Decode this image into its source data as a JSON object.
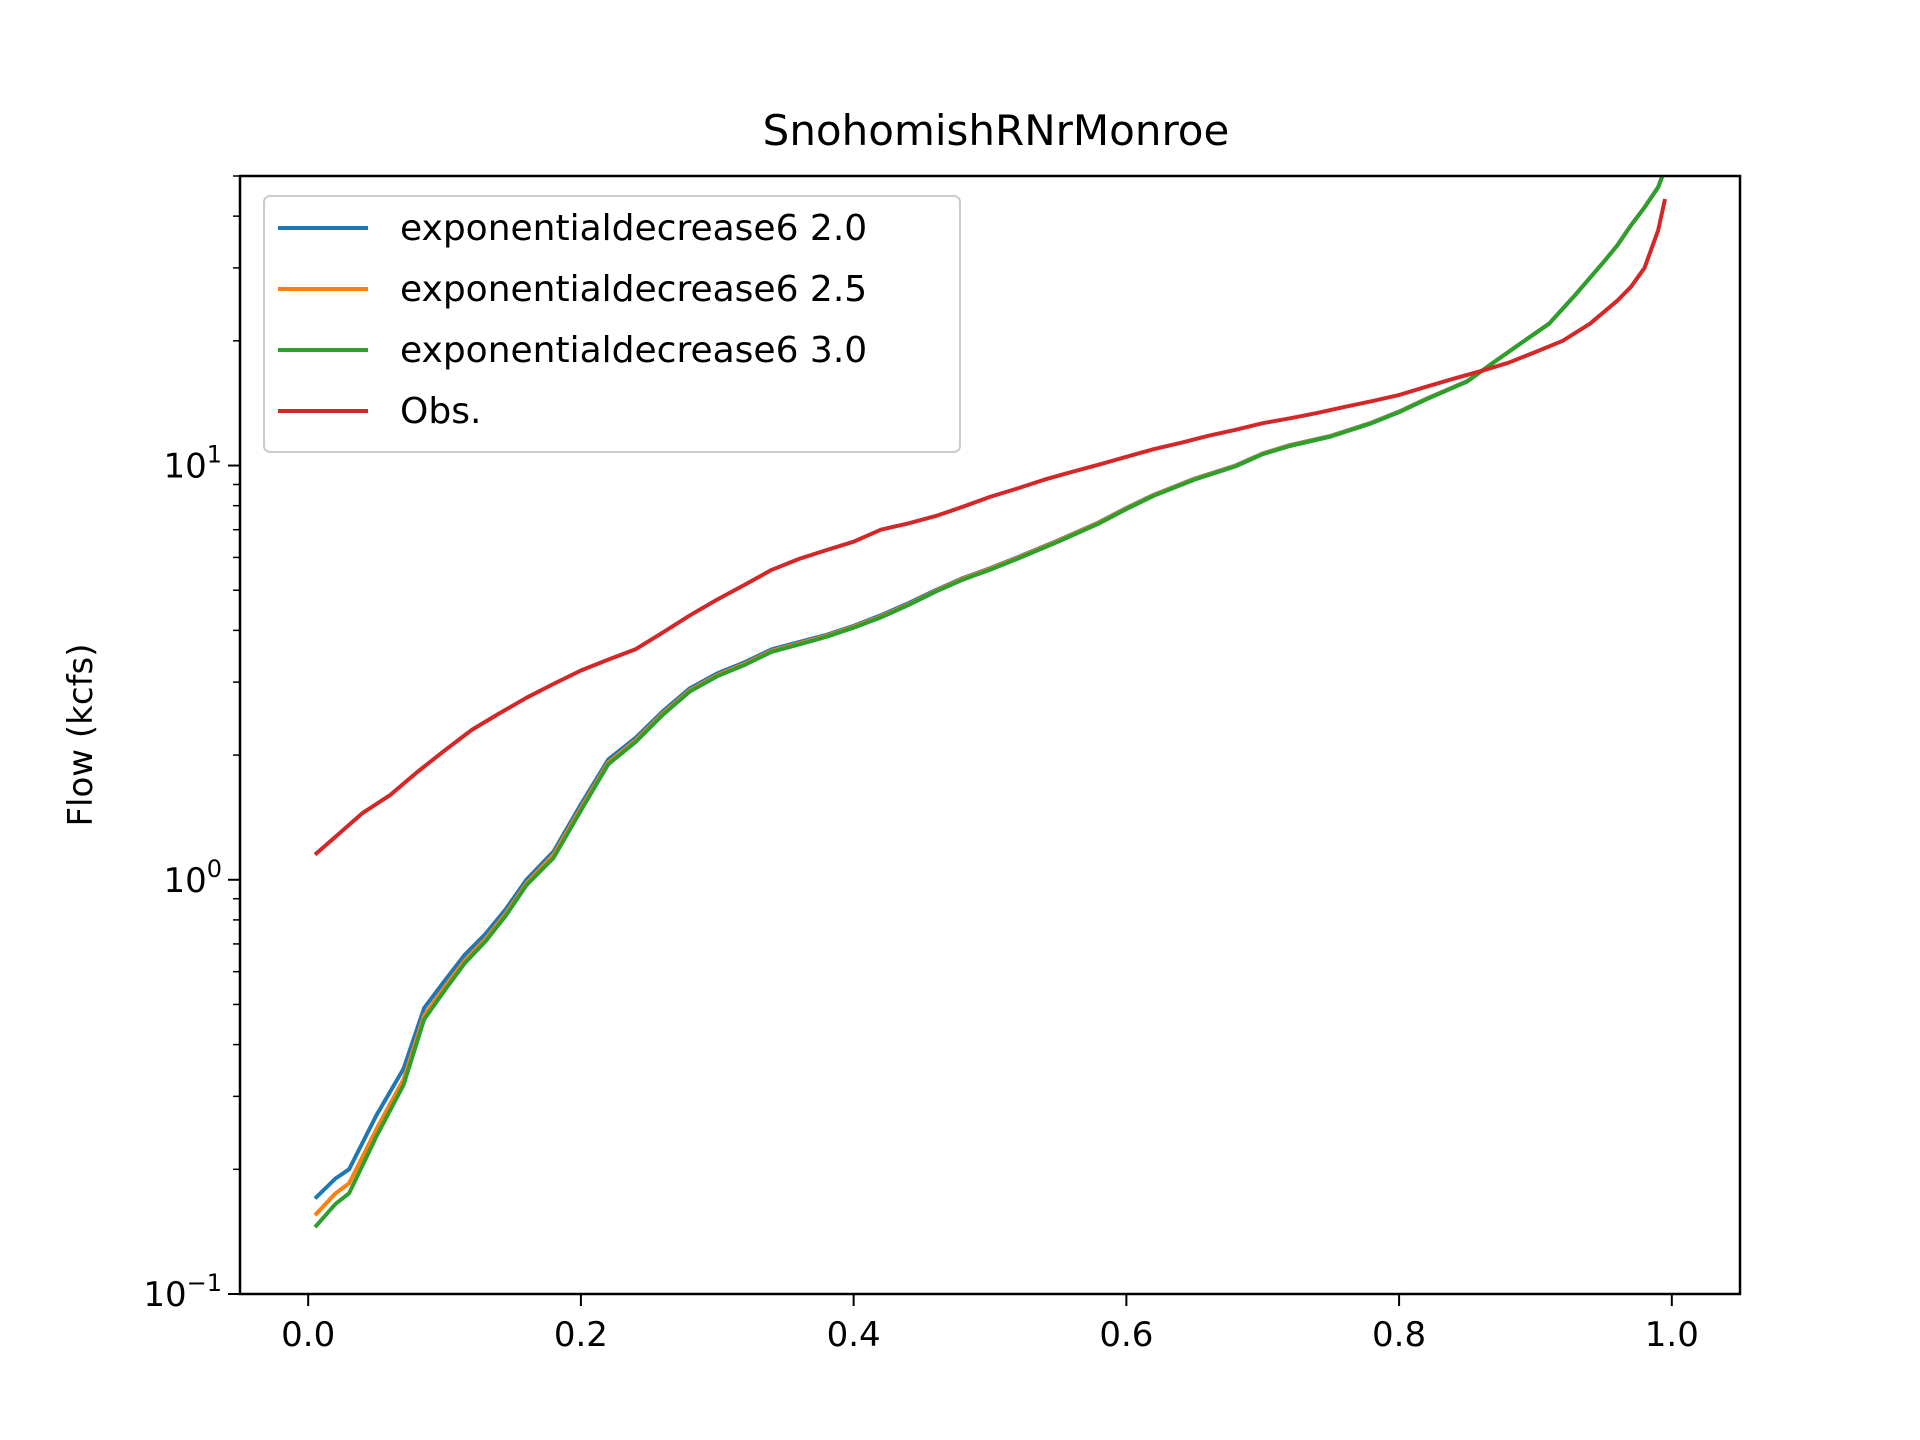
{
  "chart_data": {
    "type": "line",
    "title": "SnohomishRNrMonroe",
    "xlabel": "",
    "ylabel": "Flow (kcfs)",
    "yscale": "log",
    "xlim": [
      -0.05,
      1.05
    ],
    "ylim": [
      0.1,
      50
    ],
    "xticks": [
      0.0,
      0.2,
      0.4,
      0.6,
      0.8,
      1.0
    ],
    "xtick_labels": [
      "0.0",
      "0.2",
      "0.4",
      "0.6",
      "0.8",
      "1.0"
    ],
    "yticks": [
      {
        "value": 0.1,
        "base": "10",
        "exp": "−1"
      },
      {
        "value": 1,
        "base": "10",
        "exp": "0"
      },
      {
        "value": 10,
        "base": "10",
        "exp": "1"
      }
    ],
    "grid": false,
    "legend_position": "upper-left",
    "series": [
      {
        "name": "exponentialdecrease6 2.0",
        "color": "#1f77b4",
        "x": [
          0.005,
          0.02,
          0.03,
          0.05,
          0.07,
          0.085,
          0.1,
          0.115,
          0.13,
          0.145,
          0.16,
          0.18,
          0.2,
          0.22,
          0.24,
          0.26,
          0.28,
          0.3,
          0.32,
          0.34,
          0.36,
          0.38,
          0.4,
          0.42,
          0.44,
          0.46,
          0.48,
          0.5,
          0.52,
          0.55,
          0.58,
          0.6,
          0.62,
          0.65,
          0.68,
          0.7,
          0.72,
          0.75,
          0.78,
          0.8,
          0.82,
          0.85,
          0.87,
          0.89,
          0.91,
          0.93,
          0.95,
          0.96,
          0.97,
          0.98,
          0.99,
          0.995
        ],
        "values": [
          0.17,
          0.19,
          0.2,
          0.27,
          0.35,
          0.49,
          0.57,
          0.66,
          0.74,
          0.85,
          1.0,
          1.17,
          1.52,
          1.95,
          2.2,
          2.55,
          2.9,
          3.15,
          3.35,
          3.6,
          3.75,
          3.9,
          4.1,
          4.35,
          4.65,
          5.0,
          5.35,
          5.65,
          6.0,
          6.6,
          7.3,
          7.9,
          8.5,
          9.3,
          10.0,
          10.7,
          11.2,
          11.8,
          12.7,
          13.5,
          14.5,
          16.0,
          17.8,
          19.8,
          22.0,
          26.0,
          31.0,
          34.0,
          38.0,
          42.0,
          47.0,
          52.0
        ]
      },
      {
        "name": "exponentialdecrease6 2.5",
        "color": "#ff7f0e",
        "x": [
          0.005,
          0.02,
          0.03,
          0.05,
          0.07,
          0.085,
          0.1,
          0.115,
          0.13,
          0.145,
          0.16,
          0.18,
          0.2,
          0.22,
          0.24,
          0.26,
          0.28,
          0.3,
          0.32,
          0.34,
          0.36,
          0.38,
          0.4,
          0.42,
          0.44,
          0.46,
          0.48,
          0.5,
          0.52,
          0.55,
          0.58,
          0.6,
          0.62,
          0.65,
          0.68,
          0.7,
          0.72,
          0.75,
          0.78,
          0.8,
          0.82,
          0.85,
          0.87,
          0.89,
          0.91,
          0.93,
          0.95,
          0.96,
          0.97,
          0.98,
          0.99,
          0.995
        ],
        "values": [
          0.155,
          0.175,
          0.185,
          0.25,
          0.33,
          0.47,
          0.55,
          0.64,
          0.72,
          0.83,
          0.98,
          1.15,
          1.49,
          1.92,
          2.17,
          2.52,
          2.87,
          3.12,
          3.32,
          3.57,
          3.72,
          3.88,
          4.08,
          4.32,
          4.62,
          4.98,
          5.33,
          5.63,
          5.98,
          6.58,
          7.28,
          7.88,
          8.48,
          9.28,
          9.98,
          10.68,
          11.18,
          11.78,
          12.68,
          13.48,
          14.48,
          15.98,
          17.8,
          19.8,
          22.0,
          26.0,
          31.0,
          34.0,
          38.0,
          42.0,
          47.0,
          52.0
        ]
      },
      {
        "name": "exponentialdecrease6 3.0",
        "color": "#2ca02c",
        "x": [
          0.005,
          0.02,
          0.03,
          0.05,
          0.07,
          0.085,
          0.1,
          0.115,
          0.13,
          0.145,
          0.16,
          0.18,
          0.2,
          0.22,
          0.24,
          0.26,
          0.28,
          0.3,
          0.32,
          0.34,
          0.36,
          0.38,
          0.4,
          0.42,
          0.44,
          0.46,
          0.48,
          0.5,
          0.52,
          0.55,
          0.58,
          0.6,
          0.62,
          0.65,
          0.68,
          0.7,
          0.72,
          0.75,
          0.78,
          0.8,
          0.82,
          0.85,
          0.87,
          0.89,
          0.91,
          0.93,
          0.95,
          0.96,
          0.97,
          0.98,
          0.99,
          0.995
        ],
        "values": [
          0.145,
          0.165,
          0.175,
          0.24,
          0.32,
          0.46,
          0.54,
          0.63,
          0.71,
          0.82,
          0.97,
          1.13,
          1.47,
          1.9,
          2.15,
          2.5,
          2.85,
          3.1,
          3.3,
          3.55,
          3.7,
          3.86,
          4.06,
          4.3,
          4.6,
          4.96,
          5.3,
          5.6,
          5.95,
          6.55,
          7.25,
          7.85,
          8.45,
          9.25,
          9.95,
          10.65,
          11.15,
          11.75,
          12.65,
          13.45,
          14.45,
          15.95,
          17.8,
          19.8,
          22.0,
          26.0,
          31.0,
          34.0,
          38.0,
          42.0,
          47.0,
          52.0
        ]
      },
      {
        "name": "Obs.",
        "color": "#d62728",
        "x": [
          0.005,
          0.02,
          0.04,
          0.06,
          0.08,
          0.1,
          0.12,
          0.14,
          0.16,
          0.18,
          0.2,
          0.22,
          0.24,
          0.26,
          0.28,
          0.3,
          0.32,
          0.34,
          0.36,
          0.38,
          0.4,
          0.42,
          0.44,
          0.46,
          0.48,
          0.5,
          0.52,
          0.54,
          0.56,
          0.58,
          0.6,
          0.62,
          0.64,
          0.66,
          0.68,
          0.7,
          0.72,
          0.74,
          0.76,
          0.78,
          0.8,
          0.82,
          0.84,
          0.86,
          0.88,
          0.9,
          0.92,
          0.94,
          0.96,
          0.97,
          0.98,
          0.99,
          0.995
        ],
        "values": [
          1.15,
          1.27,
          1.45,
          1.6,
          1.82,
          2.05,
          2.3,
          2.52,
          2.75,
          2.97,
          3.2,
          3.4,
          3.6,
          3.95,
          4.35,
          4.75,
          5.15,
          5.6,
          5.95,
          6.25,
          6.55,
          7.0,
          7.25,
          7.55,
          7.95,
          8.4,
          8.8,
          9.25,
          9.65,
          10.05,
          10.5,
          10.95,
          11.35,
          11.8,
          12.2,
          12.65,
          13.0,
          13.4,
          13.85,
          14.3,
          14.8,
          15.5,
          16.2,
          16.9,
          17.7,
          18.8,
          20.0,
          22.0,
          25.0,
          27.0,
          30.0,
          37.0,
          44.0
        ]
      }
    ]
  }
}
